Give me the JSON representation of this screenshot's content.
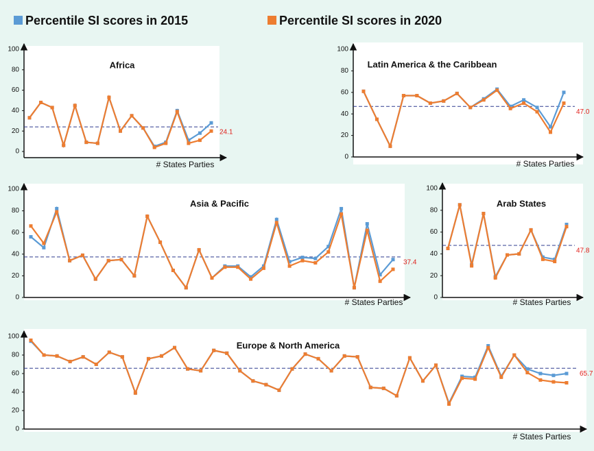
{
  "legend_position": "top",
  "chart_data": [
    {
      "type": "line",
      "title": "Africa",
      "x_label": "# States Parties",
      "ylim": [
        0,
        100
      ],
      "yticks": [
        0,
        20,
        40,
        60,
        80,
        100
      ],
      "average": {
        "value": 24.1,
        "label": "24.1"
      },
      "series": [
        {
          "name": "Percentile SI scores in 2015",
          "color": "#5b9bd5",
          "values": [
            33,
            48,
            43,
            6,
            45,
            9,
            8,
            53,
            20,
            35,
            23,
            5,
            9,
            40,
            11,
            18,
            28
          ]
        },
        {
          "name": "Percentile SI scores in 2020",
          "color": "#ed7d31",
          "values": [
            33,
            48,
            43,
            6,
            45,
            9,
            8,
            53,
            20,
            35,
            23,
            4,
            8,
            39,
            8,
            11,
            20
          ]
        }
      ]
    },
    {
      "type": "line",
      "title": "Latin America & the Caribbean",
      "x_label": "# States Parties",
      "ylim": [
        0,
        100
      ],
      "yticks": [
        0,
        20,
        40,
        60,
        80,
        100
      ],
      "average": {
        "value": 47,
        "label": "47.0"
      },
      "series": [
        {
          "color": "#5b9bd5",
          "values": [
            61,
            35,
            10,
            57,
            57,
            50,
            52,
            59,
            46,
            54,
            63,
            47,
            53,
            46,
            28,
            60
          ]
        },
        {
          "color": "#ed7d31",
          "values": [
            61,
            35,
            10,
            57,
            57,
            50,
            52,
            59,
            46,
            53,
            62,
            45,
            50,
            42,
            23,
            50
          ]
        }
      ]
    },
    {
      "type": "line",
      "title": "Asia & Pacific",
      "x_label": "# States Parties",
      "ylim": [
        0,
        100
      ],
      "yticks": [
        0,
        20,
        40,
        60,
        80,
        100
      ],
      "average": {
        "value": 37.4,
        "label": "37.4"
      },
      "series": [
        {
          "color": "#5b9bd5",
          "values": [
            56,
            46,
            82,
            34,
            39,
            17,
            34,
            35,
            20,
            75,
            51,
            25,
            9,
            44,
            18,
            29,
            29,
            19,
            29,
            72,
            33,
            37,
            36,
            47,
            82,
            9,
            68,
            21,
            35
          ]
        },
        {
          "color": "#ed7d31",
          "values": [
            66,
            50,
            79,
            34,
            39,
            17,
            34,
            35,
            20,
            75,
            51,
            25,
            9,
            44,
            18,
            28,
            28,
            17,
            27,
            69,
            29,
            34,
            32,
            42,
            77,
            9,
            62,
            15,
            26
          ]
        }
      ]
    },
    {
      "type": "line",
      "title": "Arab States",
      "x_label": "# States Parties",
      "ylim": [
        0,
        100
      ],
      "yticks": [
        0,
        20,
        40,
        60,
        80,
        100
      ],
      "average": {
        "value": 47.8,
        "label": "47.8"
      },
      "series": [
        {
          "color": "#5b9bd5",
          "values": [
            45,
            85,
            30,
            77,
            19,
            39,
            40,
            62,
            37,
            35,
            67
          ]
        },
        {
          "color": "#ed7d31",
          "values": [
            45,
            85,
            29,
            77,
            18,
            39,
            40,
            62,
            35,
            33,
            65
          ]
        }
      ]
    },
    {
      "type": "line",
      "title": "Europe & North America",
      "x_label": "# States Parties",
      "ylim": [
        0,
        100
      ],
      "yticks": [
        0,
        20,
        40,
        60,
        80,
        100
      ],
      "average": {
        "value": 65.7,
        "label": "65.7"
      },
      "series": [
        {
          "color": "#5b9bd5",
          "values": [
            95,
            80,
            79,
            73,
            78,
            70,
            83,
            78,
            39,
            76,
            79,
            88,
            65,
            63,
            85,
            82,
            63,
            52,
            48,
            42,
            65,
            81,
            76,
            63,
            79,
            78,
            45,
            44,
            36,
            77,
            52,
            69,
            28,
            57,
            56,
            90,
            57,
            80,
            65,
            60,
            58,
            60
          ]
        },
        {
          "color": "#ed7d31",
          "values": [
            96,
            80,
            79,
            73,
            78,
            70,
            83,
            78,
            39,
            76,
            79,
            88,
            65,
            63,
            85,
            82,
            63,
            52,
            48,
            42,
            65,
            81,
            76,
            63,
            79,
            78,
            45,
            44,
            36,
            77,
            52,
            69,
            27,
            55,
            54,
            88,
            56,
            80,
            61,
            53,
            51,
            50
          ]
        }
      ]
    }
  ]
}
